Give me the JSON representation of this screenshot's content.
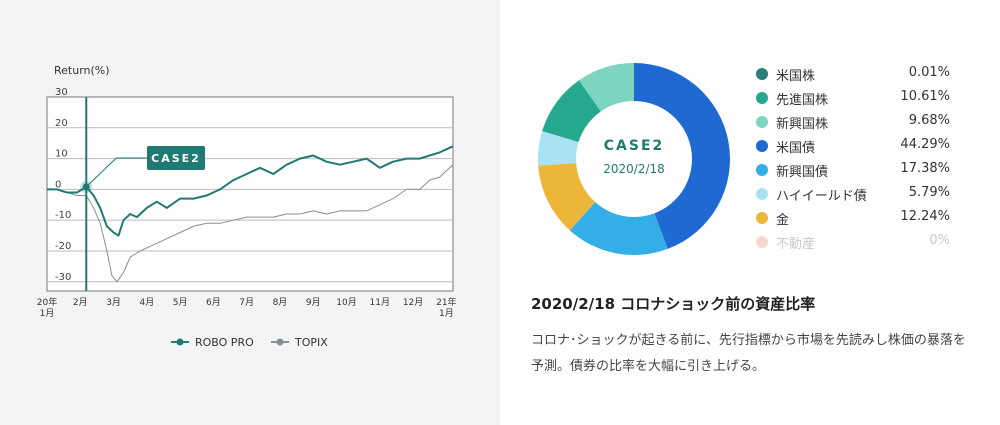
{
  "chart_data": [
    {
      "type": "line",
      "ylabel": "Return(%)",
      "ylim": [
        -33,
        30
      ],
      "y_ticks": [
        30,
        20,
        10,
        0,
        -10,
        -20,
        -30
      ],
      "x_ticks": [
        [
          "20年",
          "1月"
        ],
        [
          "2月"
        ],
        [
          "3月"
        ],
        [
          "4月"
        ],
        [
          "5月"
        ],
        [
          "6月"
        ],
        [
          "7月"
        ],
        [
          "8月"
        ],
        [
          "9月"
        ],
        [
          "10月"
        ],
        [
          "11月"
        ],
        [
          "12月"
        ],
        [
          "21年",
          "1月"
        ]
      ],
      "xlim": [
        0,
        12.2
      ],
      "grid": true,
      "marker": {
        "x": 1.18,
        "y": 0.8,
        "label": "CASE2"
      },
      "series": [
        {
          "name": "ROBO PRO",
          "color": "#1f7a74",
          "x": [
            0,
            0.3,
            0.6,
            0.9,
            1.18,
            1.4,
            1.6,
            1.8,
            2.0,
            2.15,
            2.3,
            2.5,
            2.7,
            3.0,
            3.3,
            3.6,
            4.0,
            4.4,
            4.8,
            5.2,
            5.6,
            6.0,
            6.4,
            6.8,
            7.2,
            7.6,
            8.0,
            8.4,
            8.8,
            9.2,
            9.6,
            10.0,
            10.4,
            10.8,
            11.2,
            11.5,
            11.8,
            12.0,
            12.2
          ],
          "values": [
            0,
            0,
            -1,
            -1,
            0.8,
            -2,
            -6,
            -12,
            -14,
            -15,
            -10,
            -8,
            -9,
            -6,
            -4,
            -6,
            -3,
            -3,
            -2,
            0,
            3,
            5,
            7,
            5,
            8,
            10,
            11,
            9,
            8,
            9,
            10,
            7,
            9,
            10,
            10,
            11,
            12,
            13,
            14
          ]
        },
        {
          "name": "TOPIX",
          "color": "#8a8d93",
          "x": [
            0,
            0.3,
            0.6,
            0.9,
            1.18,
            1.4,
            1.6,
            1.8,
            1.95,
            2.1,
            2.3,
            2.5,
            2.8,
            3.2,
            3.6,
            4.0,
            4.4,
            4.8,
            5.2,
            5.6,
            6.0,
            6.4,
            6.8,
            7.2,
            7.6,
            8.0,
            8.4,
            8.8,
            9.2,
            9.6,
            10.0,
            10.4,
            10.8,
            11.2,
            11.5,
            11.8,
            12.0,
            12.2
          ],
          "values": [
            0,
            0,
            -1,
            -2,
            -2,
            -6,
            -11,
            -20,
            -28,
            -30,
            -27,
            -22,
            -20,
            -18,
            -16,
            -14,
            -12,
            -11,
            -11,
            -10,
            -9,
            -9,
            -9,
            -8,
            -8,
            -7,
            -8,
            -7,
            -7,
            -7,
            -5,
            -3,
            0,
            0,
            3,
            4,
            6,
            8
          ]
        }
      ]
    },
    {
      "type": "pie",
      "center_label": "CASE2",
      "center_sublabel": "2020/2/18",
      "categories": [
        "米国株",
        "先進国株",
        "新興国株",
        "米国債",
        "新興国債",
        "ハイイールド債",
        "金",
        "不動産"
      ],
      "values": [
        0.01,
        10.61,
        9.68,
        44.29,
        17.38,
        5.79,
        12.24,
        0
      ],
      "labels": [
        "0.01%",
        "10.61%",
        "9.68%",
        "44.29%",
        "17.38%",
        "5.79%",
        "12.24%",
        "0%"
      ],
      "colors": [
        "#2a7d7d",
        "#26a88f",
        "#7dd4c0",
        "#1e69d2",
        "#34aee6",
        "#a9e2f5",
        "#ecb63b",
        "#f8d7cf"
      ]
    }
  ],
  "legend": {
    "robo": "ROBO PRO",
    "topix": "TOPIX"
  },
  "case_label": "CASE2",
  "heading": "2020/2/18 コロナショック前の資産比率",
  "description": "コロナ･ショックが起きる前に、先行指標から市場を先読みし株価の暴落を予測。債券の比率を大幅に引き上げる。",
  "colors": {
    "accent": "#1f7a74",
    "left_background": "#f3f4f6"
  }
}
